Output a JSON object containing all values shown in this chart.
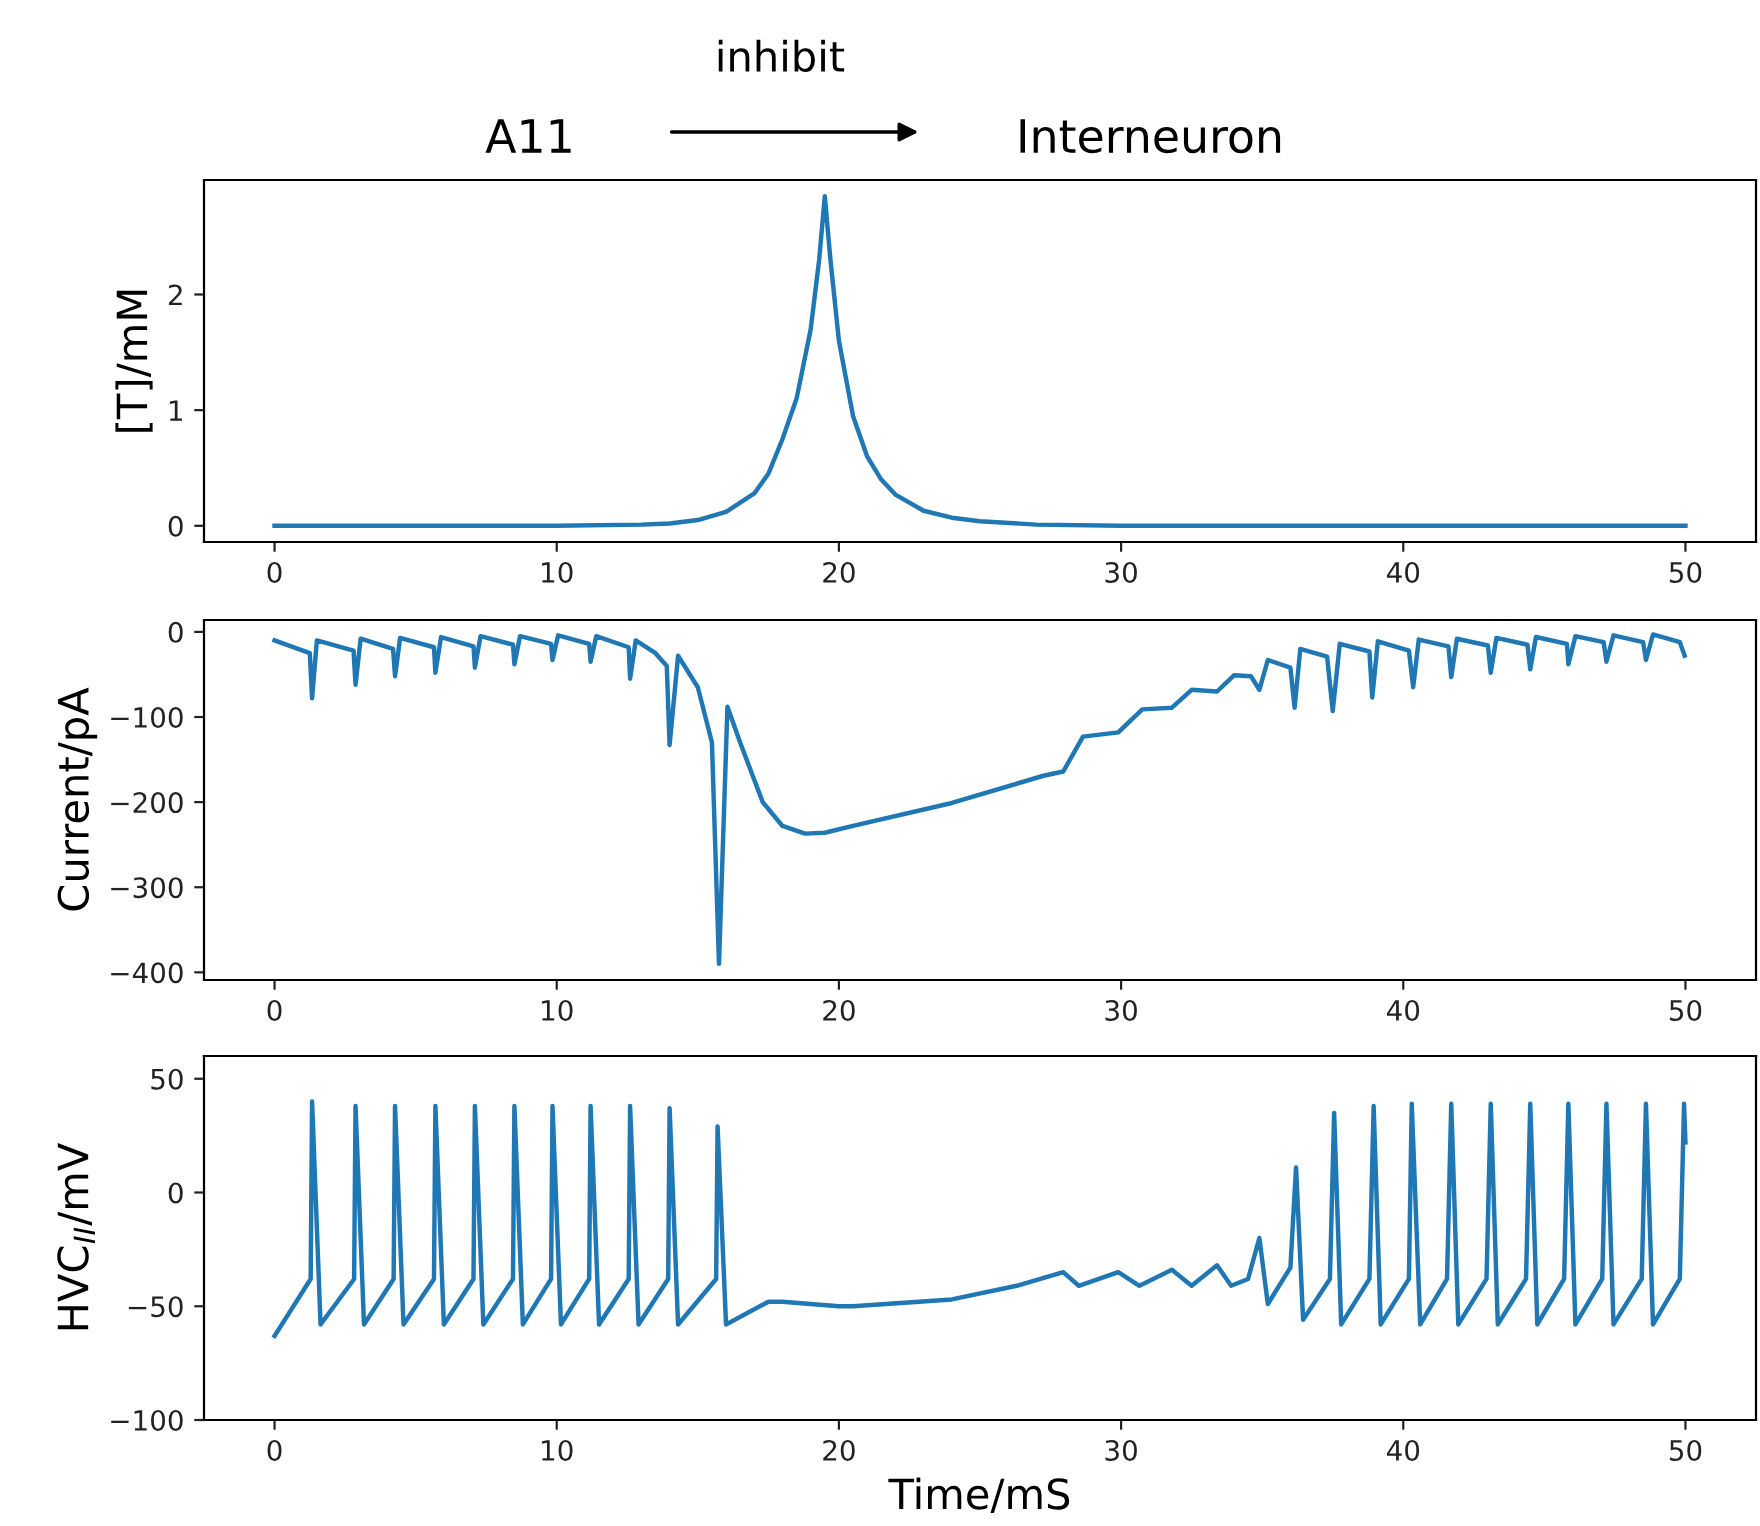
{
  "chart_data": [
    {
      "type": "line",
      "annotations": [
        "A11",
        "inhibit",
        "Interneuron"
      ],
      "ylabel": "[T]/mM",
      "xlim": [
        -2.5,
        52.5
      ],
      "xticks": [
        0,
        10,
        20,
        30,
        40,
        50
      ],
      "ylim": [
        -0.14,
        2.99
      ],
      "yticks": [
        0,
        1,
        2
      ],
      "x": [
        0,
        5,
        10,
        13,
        14,
        15,
        16,
        17,
        17.5,
        18,
        18.5,
        19,
        19.3,
        19.5,
        19.7,
        20,
        20.5,
        21,
        21.5,
        22,
        23,
        24,
        25,
        27,
        30,
        35,
        40,
        45,
        50
      ],
      "series": [
        {
          "color": "#1f77b4",
          "values": [
            0,
            0,
            0,
            0.01,
            0.02,
            0.05,
            0.12,
            0.28,
            0.45,
            0.75,
            1.1,
            1.7,
            2.3,
            2.85,
            2.3,
            1.6,
            0.95,
            0.6,
            0.4,
            0.27,
            0.13,
            0.07,
            0.04,
            0.01,
            0,
            0,
            0,
            0,
            0
          ]
        }
      ]
    },
    {
      "type": "line",
      "ylabel": "Current/pA",
      "xlim": [
        -2.5,
        52.5
      ],
      "xticks": [
        0,
        10,
        20,
        30,
        40,
        50
      ],
      "ylim": [
        -409,
        14
      ],
      "yticks": [
        0,
        -100,
        -200,
        -300,
        -400
      ],
      "x": [
        0,
        1.25,
        1.33,
        1.5,
        2.8,
        2.87,
        3.05,
        4.2,
        4.27,
        4.45,
        5.65,
        5.7,
        5.9,
        7.05,
        7.1,
        7.3,
        8.45,
        8.5,
        8.7,
        9.8,
        9.85,
        10.05,
        11.15,
        11.2,
        11.4,
        12.55,
        12.6,
        12.8,
        13.5,
        13.9,
        14.0,
        14.3,
        15.0,
        15.5,
        15.75,
        16.05,
        16.5,
        17.3,
        18.0,
        18.8,
        19.5,
        20.5,
        24.0,
        27.25,
        27.95,
        28.65,
        29.9,
        30.75,
        31.8,
        32.5,
        33.4,
        34.0,
        34.6,
        34.9,
        35.2,
        36.0,
        36.15,
        36.35,
        37.3,
        37.5,
        37.75,
        38.8,
        38.9,
        39.1,
        40.2,
        40.35,
        40.55,
        41.6,
        41.7,
        41.9,
        43.0,
        43.1,
        43.3,
        44.4,
        44.5,
        44.7,
        45.8,
        45.85,
        46.1,
        47.1,
        47.2,
        47.45,
        48.5,
        48.6,
        48.85,
        49.8,
        49.97
      ],
      "series": [
        {
          "color": "#1f77b4",
          "values": [
            -10,
            -25,
            -78,
            -10,
            -22,
            -62,
            -8,
            -20,
            -52,
            -7,
            -18,
            -48,
            -6,
            -17,
            -42,
            -5,
            -15,
            -38,
            -5,
            -14,
            -33,
            -4,
            -14,
            -35,
            -5,
            -18,
            -55,
            -10,
            -25,
            -40,
            -133,
            -28,
            -65,
            -130,
            -390,
            -88,
            -130,
            -200,
            -228,
            -237,
            -236,
            -228,
            -201,
            -169,
            -164,
            -123,
            -118,
            -91,
            -89,
            -68,
            -70,
            -51,
            -52,
            -68,
            -33,
            -42,
            -89,
            -20,
            -29,
            -93,
            -14,
            -23,
            -77,
            -11,
            -22,
            -65,
            -9,
            -17,
            -53,
            -8,
            -16,
            -48,
            -7,
            -15,
            -44,
            -6,
            -14,
            -38,
            -5,
            -12,
            -35,
            -4,
            -12,
            -33,
            -3,
            -12,
            -28
          ]
        }
      ]
    },
    {
      "type": "line",
      "ylabel": "HVC$_{II}$/mV",
      "xlabel": "Time/mS",
      "xlim": [
        -2.5,
        52.5
      ],
      "xticks": [
        0,
        10,
        20,
        30,
        40,
        50
      ],
      "ylim": [
        -100,
        60
      ],
      "yticks": [
        -100,
        -50,
        0,
        50
      ],
      "x": [
        0,
        1.28,
        1.33,
        1.63,
        2.82,
        2.87,
        3.17,
        4.22,
        4.27,
        4.57,
        5.65,
        5.7,
        6.0,
        7.05,
        7.1,
        7.4,
        8.45,
        8.5,
        8.8,
        9.8,
        9.85,
        10.15,
        11.15,
        11.2,
        11.5,
        12.55,
        12.6,
        12.9,
        13.95,
        14.0,
        14.3,
        15.65,
        15.7,
        16.0,
        17.5,
        18.0,
        20.0,
        20.5,
        24.0,
        26.3,
        27.95,
        28.5,
        29.9,
        30.65,
        31.8,
        32.5,
        33.4,
        33.9,
        34.5,
        34.9,
        35.2,
        36.0,
        36.2,
        36.45,
        37.4,
        37.55,
        37.8,
        38.8,
        38.95,
        39.2,
        40.2,
        40.3,
        40.6,
        41.55,
        41.7,
        41.95,
        42.95,
        43.1,
        43.35,
        44.35,
        44.5,
        44.75,
        45.7,
        45.85,
        46.1,
        47.05,
        47.2,
        47.45,
        48.45,
        48.6,
        48.85,
        49.8,
        49.95,
        50.0
      ],
      "series": [
        {
          "color": "#1f77b4",
          "values": [
            -63,
            -38,
            40,
            -58,
            -38,
            38,
            -58,
            -38,
            38,
            -58,
            -38,
            38,
            -58,
            -38,
            38,
            -58,
            -38,
            38,
            -58,
            -38,
            38,
            -58,
            -38,
            38,
            -58,
            -38,
            38,
            -58,
            -38,
            37,
            -58,
            -38,
            29,
            -58,
            -48,
            -48,
            -50,
            -50,
            -47,
            -41,
            -35,
            -41,
            -35,
            -41,
            -34,
            -41,
            -32,
            -41,
            -38,
            -20,
            -49,
            -33,
            11,
            -56,
            -38,
            35,
            -58,
            -38,
            38,
            -58,
            -38,
            39,
            -58,
            -38,
            39,
            -58,
            -38,
            39,
            -58,
            -38,
            39,
            -58,
            -38,
            39,
            -58,
            -38,
            39,
            -58,
            -38,
            39,
            -58,
            -38,
            39,
            22
          ]
        }
      ]
    }
  ]
}
